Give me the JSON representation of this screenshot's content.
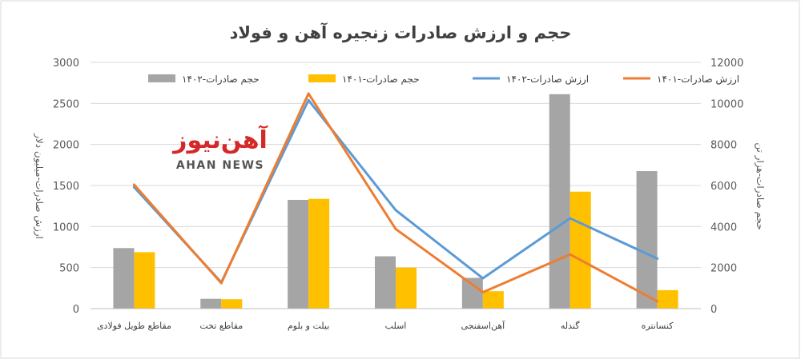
{
  "chart_data": {
    "type": "bar",
    "title": "حجم و ارزش صادرات زنجیره آهن و فولاد",
    "ylabel": "ارزش صادرات-میلیون دلار",
    "y2label": "حجم صادرات-هزار تن",
    "ylim": [
      0,
      3000
    ],
    "y2lim": [
      0,
      12000
    ],
    "yticks": [
      0,
      500,
      1000,
      1500,
      2000,
      2500,
      3000
    ],
    "y2ticks": [
      "0",
      "2000",
      "4000",
      "6000",
      "8000",
      "10000",
      "12000"
    ],
    "grid": true,
    "legend_position": "top",
    "categories": [
      "مقاطع طویل فولادی",
      "مقاطع تخت",
      "بیلت و بلوم",
      "اسلب",
      "آهن‌اسفنجی",
      "گندله",
      "کنسانتره"
    ],
    "bar_series": [
      {
        "name": "حجم صادرات-۱۴۰۲",
        "color": "#a5a5a5",
        "values": [
          2950,
          480,
          5300,
          2550,
          1500,
          10450,
          6700
        ]
      },
      {
        "name": "حجم صادرات-۱۴۰۱",
        "color": "#ffc000",
        "values": [
          2750,
          460,
          5350,
          2000,
          850,
          5700,
          900
        ]
      }
    ],
    "line_series": [
      {
        "name": "ارزش صادرات-۱۴۰۲",
        "color": "#5b9bd5",
        "values": [
          1480,
          320,
          2540,
          1200,
          370,
          1100,
          610
        ]
      },
      {
        "name": "ارزش صادرات-۱۴۰۱",
        "color": "#ed7d31",
        "values": [
          1510,
          310,
          2620,
          970,
          200,
          660,
          90
        ]
      }
    ]
  },
  "watermark": {
    "text_fa": "آهن‌نیوز",
    "text_en": "AHAN NEWS"
  }
}
